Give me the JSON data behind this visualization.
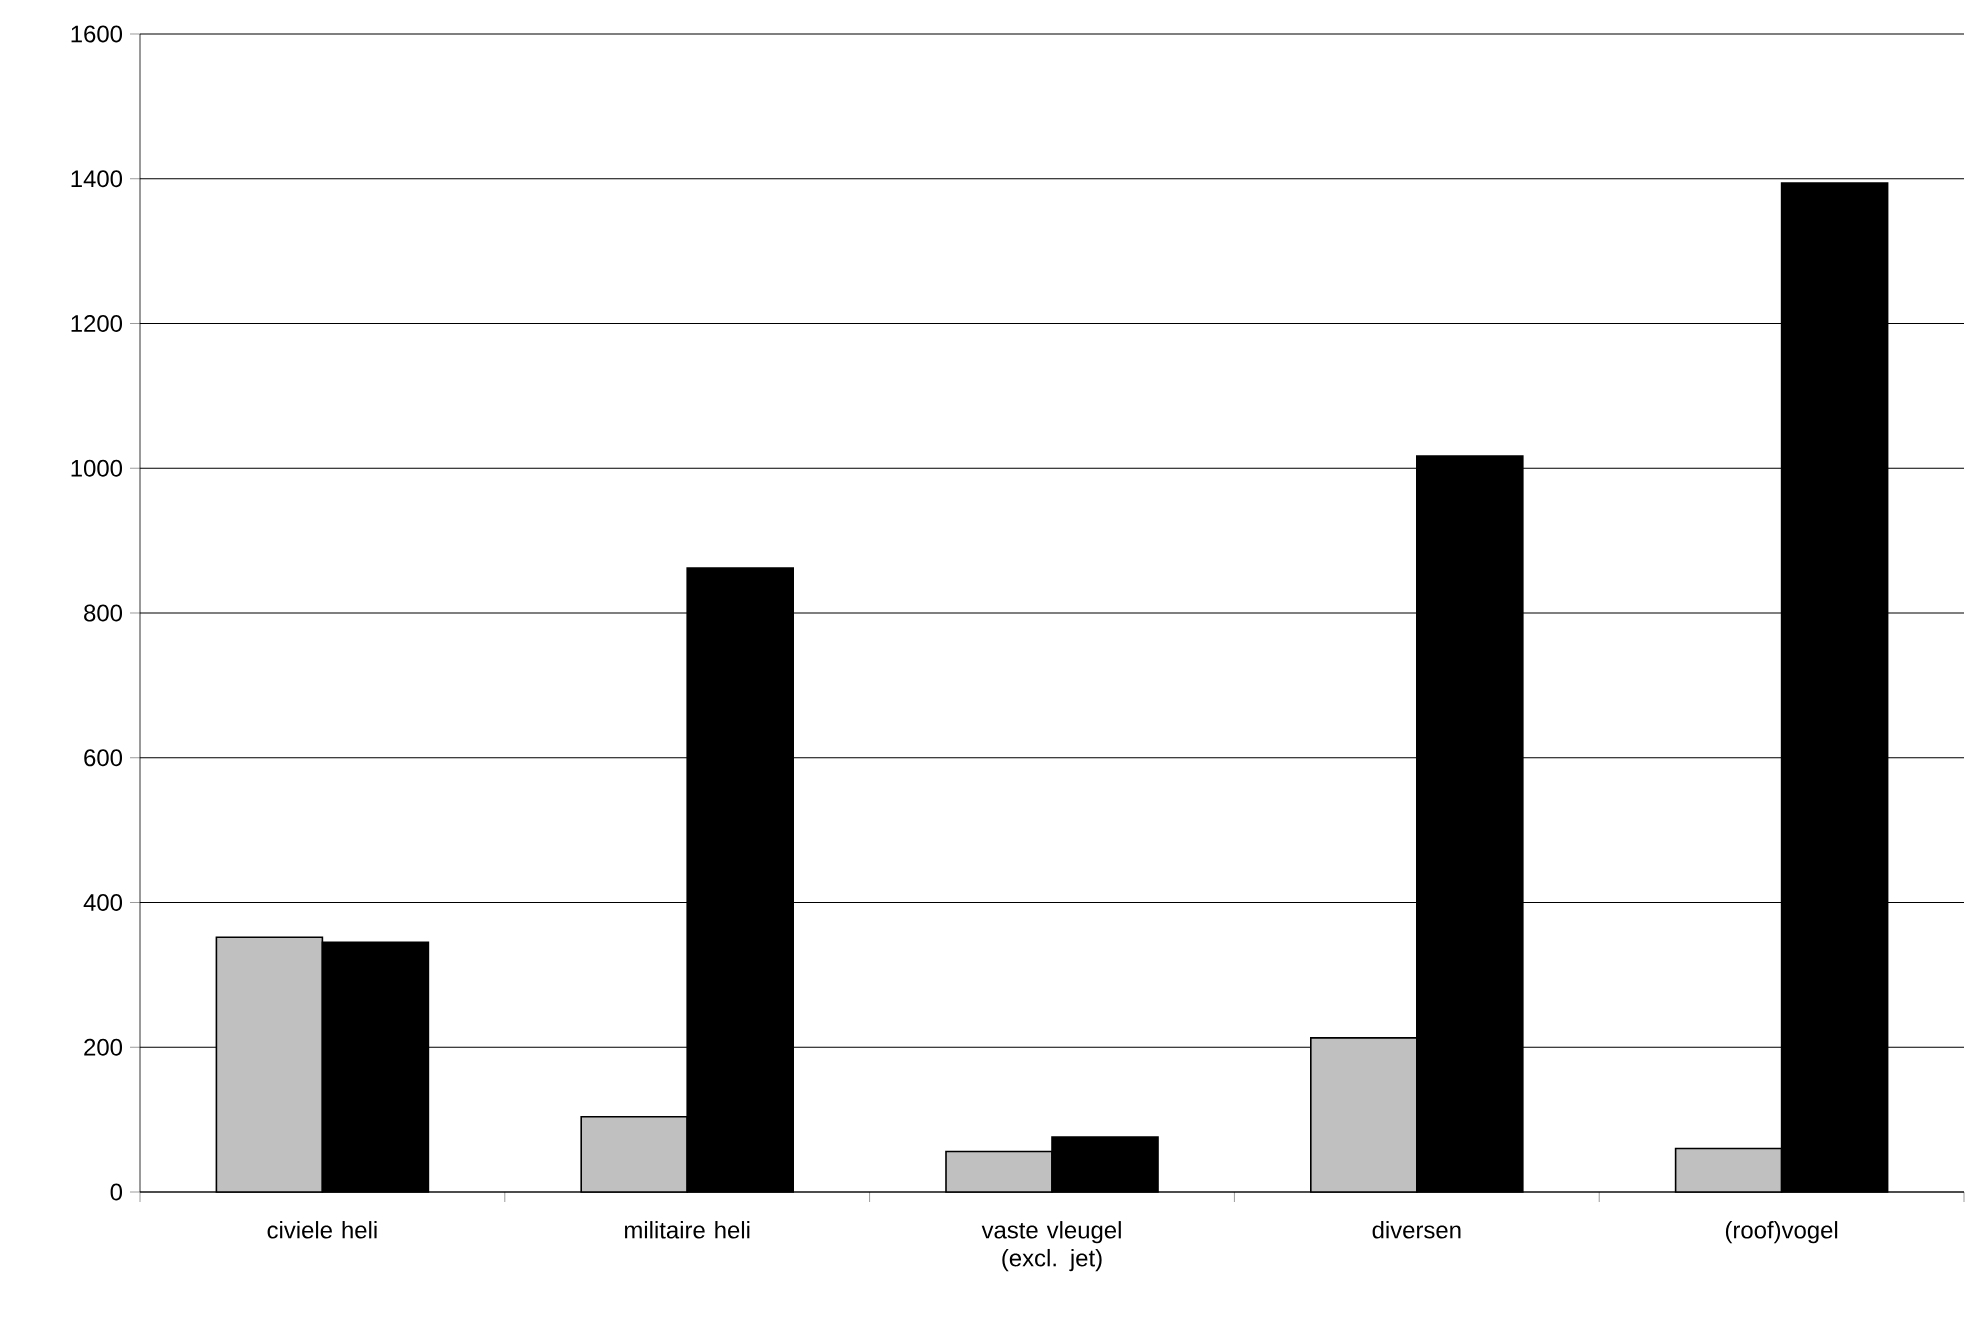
{
  "chart_data": {
    "type": "bar",
    "categories": [
      "civiele heli",
      "militaire heli",
      "vaste vleugel (excl. jet)",
      "diversen",
      "(roof)vogel"
    ],
    "series": [
      {
        "color": "#c0c0c0",
        "values": [
          352,
          104,
          56,
          213,
          60
        ]
      },
      {
        "color": "#000000",
        "values": [
          345,
          862,
          76,
          1017,
          1394
        ]
      }
    ],
    "ylim": [
      0,
      1600
    ],
    "yticks": [
      0,
      200,
      400,
      600,
      800,
      1000,
      1200,
      1400,
      1600
    ],
    "grid": "y"
  }
}
